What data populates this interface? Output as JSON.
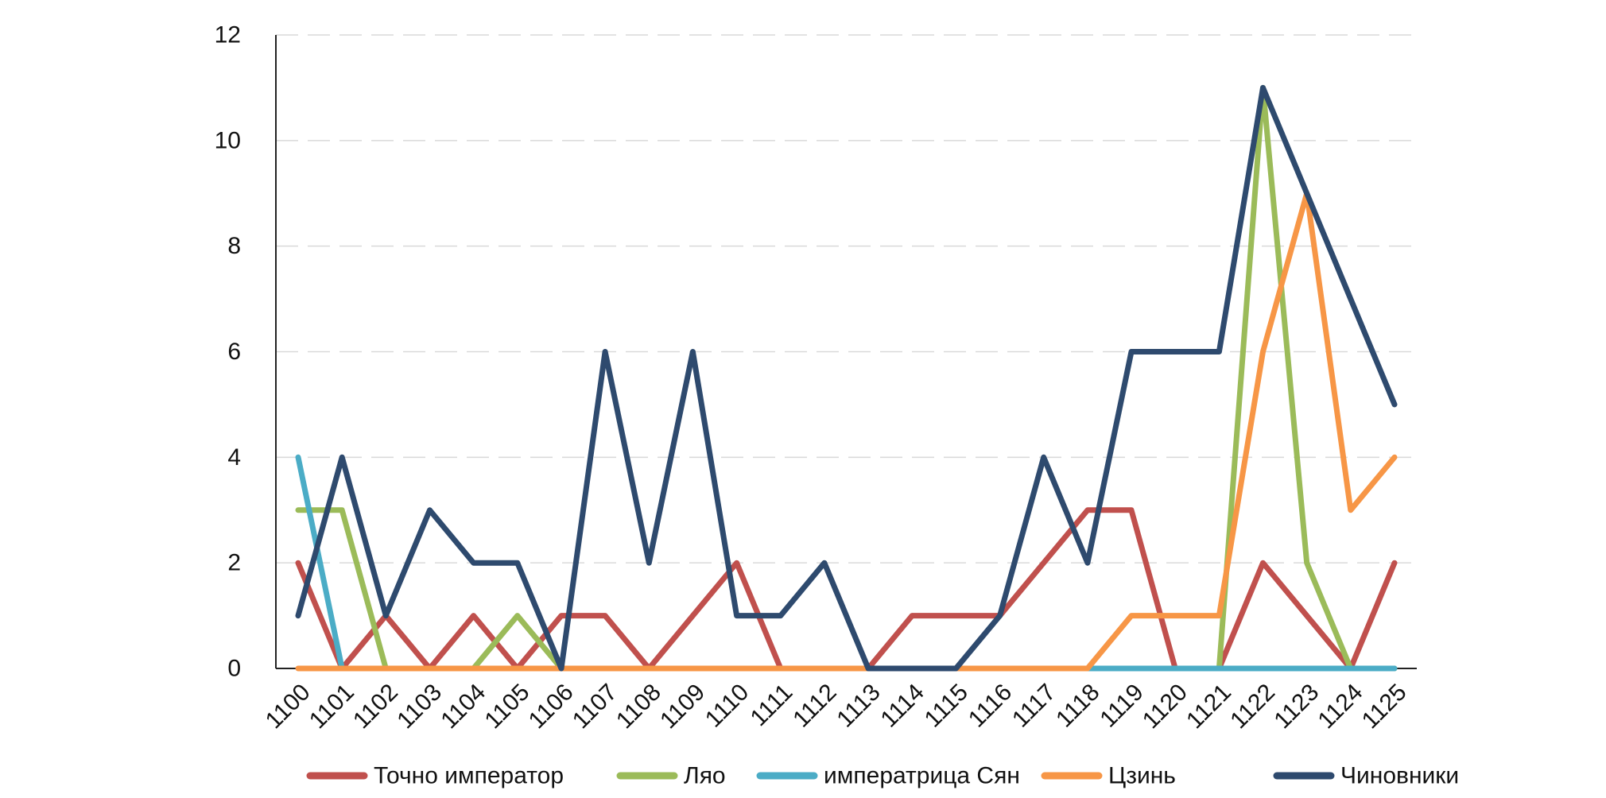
{
  "chart_data": {
    "type": "line",
    "title": "",
    "xlabel": "",
    "ylabel": "",
    "ylim": [
      0,
      12
    ],
    "yticks": [
      "0",
      "2",
      "4",
      "6",
      "8",
      "10",
      "12"
    ],
    "grid": true,
    "legend_position": "bottom",
    "categories": [
      "1100",
      "1101",
      "1102",
      "1103",
      "1104",
      "1105",
      "1106",
      "1107",
      "1108",
      "1109",
      "1110",
      "1111",
      "1112",
      "1113",
      "1114",
      "1115",
      "1116",
      "1117",
      "1118",
      "1119",
      "1120",
      "1121",
      "1122",
      "1123",
      "1124",
      "1125"
    ],
    "series": [
      {
        "name": "Точно император",
        "color": "#c0504d",
        "values": [
          2,
          0,
          1,
          0,
          1,
          0,
          1,
          1,
          0,
          1,
          2,
          0,
          0,
          0,
          1,
          1,
          1,
          2,
          3,
          3,
          0,
          0,
          2,
          1,
          0,
          2
        ]
      },
      {
        "name": "Ляо",
        "color": "#9bbb59",
        "values": [
          3,
          3,
          0,
          0,
          0,
          1,
          0,
          0,
          0,
          0,
          0,
          0,
          0,
          0,
          0,
          0,
          0,
          0,
          0,
          0,
          0,
          0,
          11,
          2,
          0,
          0
        ]
      },
      {
        "name": "императрица Сян",
        "color": "#4bacc6",
        "values": [
          4,
          0,
          0,
          0,
          0,
          0,
          0,
          0,
          0,
          0,
          0,
          0,
          0,
          0,
          0,
          0,
          0,
          0,
          0,
          0,
          0,
          0,
          0,
          0,
          0,
          0
        ]
      },
      {
        "name": "Цзинь",
        "color": "#f79646",
        "values": [
          0,
          0,
          0,
          0,
          0,
          0,
          0,
          0,
          0,
          0,
          0,
          0,
          0,
          0,
          0,
          0,
          0,
          0,
          0,
          1,
          1,
          1,
          6,
          9,
          3,
          4
        ]
      },
      {
        "name": "Чиновники",
        "color": "#2e4a6e",
        "values": [
          1,
          4,
          1,
          3,
          2,
          2,
          0,
          6,
          2,
          6,
          1,
          1,
          2,
          0,
          0,
          0,
          1,
          4,
          2,
          6,
          6,
          6,
          11,
          9,
          7,
          5
        ]
      }
    ]
  }
}
